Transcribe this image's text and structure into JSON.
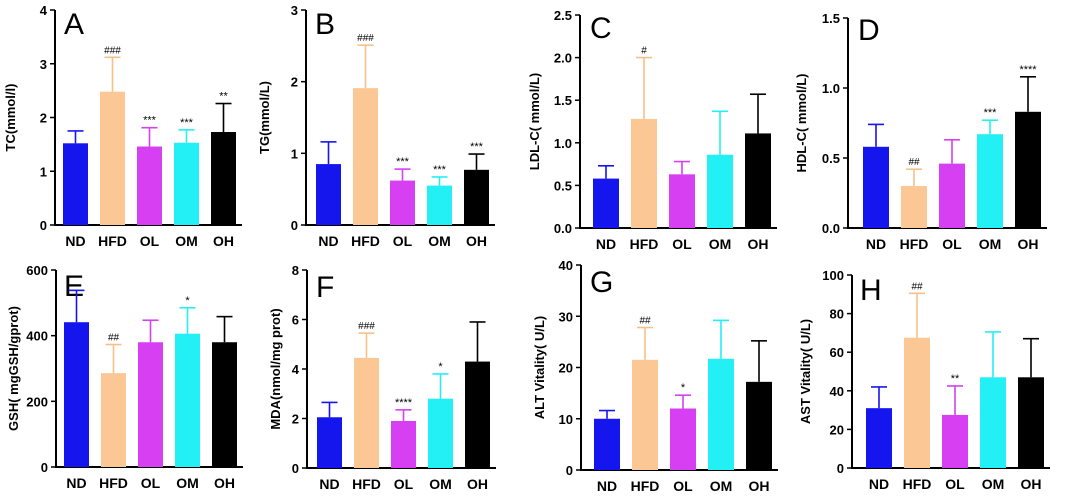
{
  "colors": {
    "ND": "#1515ee",
    "HFD": "#fbc895",
    "OL": "#d63ff2",
    "OM": "#22f0f5",
    "OH": "#000000",
    "error_HFD": "#f6c189"
  },
  "chart_data": [
    {
      "type": "bar",
      "letter": "A",
      "ylabel": "TC(mmol/l)",
      "categories": [
        "ND",
        "HFD",
        "OL",
        "OM",
        "OH"
      ],
      "values": [
        1.52,
        2.48,
        1.46,
        1.53,
        1.73
      ],
      "errors": [
        0.23,
        0.64,
        0.35,
        0.24,
        0.53
      ],
      "labels": [
        "",
        "###",
        "***",
        "***",
        "**"
      ],
      "ylim": [
        0,
        4
      ],
      "yticks": [
        "0",
        "1",
        "2",
        "3",
        "4"
      ]
    },
    {
      "type": "bar",
      "letter": "B",
      "ylabel": "TG(mmol/L)",
      "categories": [
        "ND",
        "HFD",
        "OL",
        "OM",
        "OH"
      ],
      "values": [
        0.85,
        1.91,
        0.62,
        0.55,
        0.77
      ],
      "errors": [
        0.31,
        0.6,
        0.16,
        0.12,
        0.22
      ],
      "labels": [
        "",
        "###",
        "***",
        "***",
        "***"
      ],
      "ylim": [
        0,
        3
      ],
      "yticks": [
        "0",
        "1",
        "2",
        "3"
      ]
    },
    {
      "type": "bar",
      "letter": "C",
      "ylabel": "LDL-C( mmol/L)",
      "categories": [
        "ND",
        "HFD",
        "OL",
        "OM",
        "OH"
      ],
      "values": [
        0.58,
        1.28,
        0.63,
        0.86,
        1.11
      ],
      "errors": [
        0.15,
        0.72,
        0.15,
        0.51,
        0.46
      ],
      "labels": [
        "",
        "#",
        "",
        "",
        ""
      ],
      "ylim": [
        0,
        2.5
      ],
      "yticks": [
        "0.0",
        "0.5",
        "1.0",
        "1.5",
        "2.0",
        "2.5"
      ]
    },
    {
      "type": "bar",
      "letter": "D",
      "ylabel": "HDL-C( mmol/L)",
      "categories": [
        "ND",
        "HFD",
        "OL",
        "OM",
        "OH"
      ],
      "values": [
        0.58,
        0.3,
        0.46,
        0.67,
        0.83
      ],
      "errors": [
        0.16,
        0.12,
        0.17,
        0.1,
        0.25
      ],
      "labels": [
        "",
        "##",
        "",
        "***",
        "****"
      ],
      "ylim": [
        0,
        1.5
      ],
      "yticks": [
        "0.0",
        "0.5",
        "1.0",
        "1.5"
      ]
    },
    {
      "type": "bar",
      "letter": "E",
      "ylabel": "GSH( mgGSH/gprot)",
      "categories": [
        "ND",
        "HFD",
        "OL",
        "OM",
        "OH"
      ],
      "values": [
        441,
        286,
        380,
        406,
        380
      ],
      "errors": [
        97,
        87,
        67,
        79,
        78
      ],
      "labels": [
        "",
        "##",
        "",
        "*",
        ""
      ],
      "ylim": [
        0,
        600
      ],
      "yticks": [
        "0",
        "200",
        "400",
        "600"
      ]
    },
    {
      "type": "bar",
      "letter": "F",
      "ylabel": "MDA(nmol/mg prot)",
      "categories": [
        "ND",
        "HFD",
        "OL",
        "OM",
        "OH"
      ],
      "values": [
        2.05,
        4.45,
        1.9,
        2.8,
        4.3
      ],
      "errors": [
        0.6,
        1.0,
        0.45,
        1.0,
        1.6
      ],
      "labels": [
        "",
        "###",
        "****",
        "*",
        ""
      ],
      "ylim": [
        0,
        8
      ],
      "yticks": [
        "0",
        "2",
        "4",
        "6",
        "8"
      ]
    },
    {
      "type": "bar",
      "letter": "G",
      "ylabel": "ALT Vitality( U/L)",
      "categories": [
        "ND",
        "HFD",
        "OL",
        "OM",
        "OH"
      ],
      "values": [
        10.0,
        21.5,
        12.0,
        21.7,
        17.2
      ],
      "errors": [
        1.6,
        6.3,
        2.6,
        7.5,
        8.0
      ],
      "labels": [
        "",
        "##",
        "*",
        "",
        ""
      ],
      "ylim": [
        0,
        40
      ],
      "yticks": [
        "0",
        "10",
        "20",
        "30",
        "40"
      ]
    },
    {
      "type": "bar",
      "letter": "H",
      "ylabel": "AST Vitality( U/L)",
      "categories": [
        "ND",
        "HFD",
        "OL",
        "OM",
        "OH"
      ],
      "values": [
        31,
        67.5,
        27.5,
        47,
        47
      ],
      "errors": [
        11,
        23,
        15,
        23.5,
        20
      ],
      "labels": [
        "",
        "##",
        "**",
        "",
        ""
      ],
      "ylim": [
        0,
        100
      ],
      "yticks": [
        "0",
        "20",
        "40",
        "60",
        "80",
        "100"
      ]
    }
  ]
}
